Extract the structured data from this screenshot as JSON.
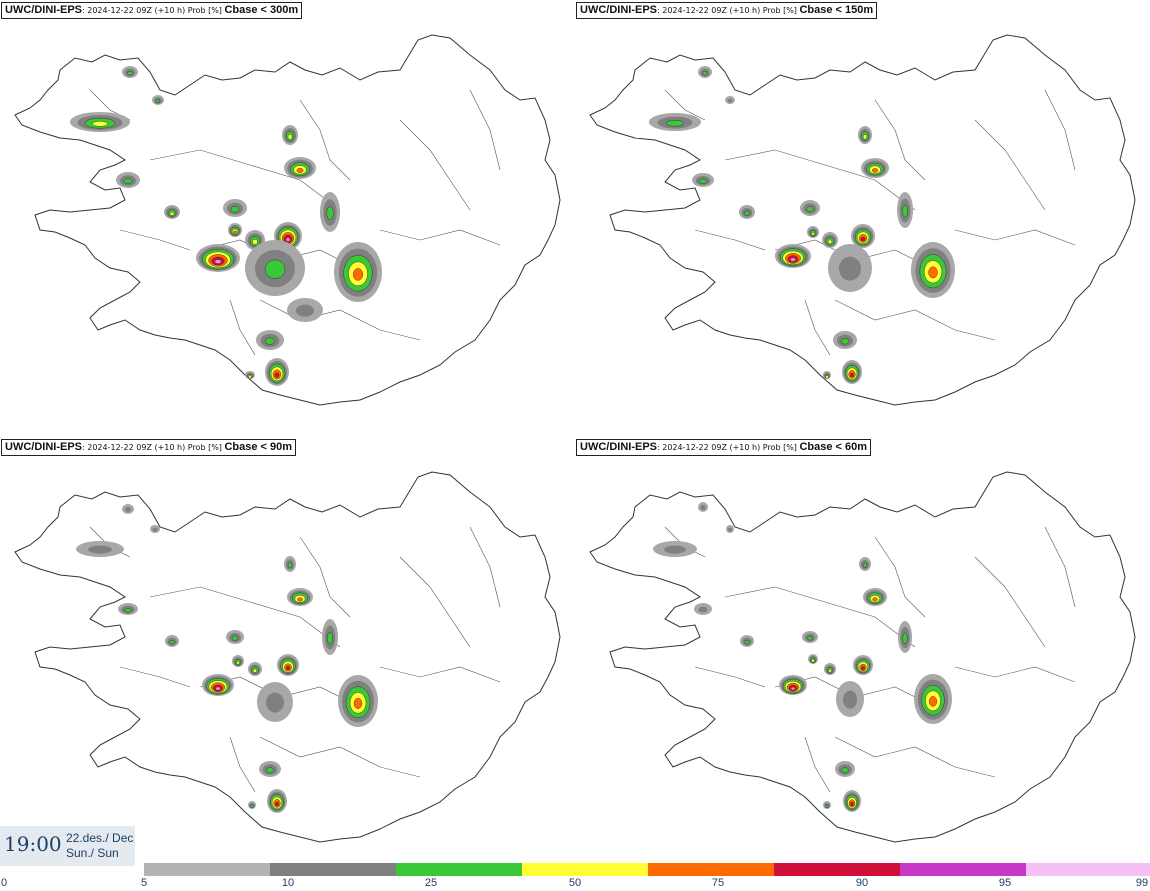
{
  "panels": [
    {
      "model": "UWC/DINI-EPS",
      "run": ": 2024-12-22 09Z (+10 h) Prob [%] ",
      "variable": "Cbase < 300m"
    },
    {
      "model": "UWC/DINI-EPS",
      "run": ": 2024-12-22 09Z (+10 h) Prob [%] ",
      "variable": "Cbase < 150m"
    },
    {
      "model": "UWC/DINI-EPS",
      "run": ": 2024-12-22 09Z (+10 h) Prob [%] ",
      "variable": "Cbase < 90m"
    },
    {
      "model": "UWC/DINI-EPS",
      "run": ": 2024-12-22 09Z (+10 h) Prob [%] ",
      "variable": "Cbase < 60m"
    }
  ],
  "valid": {
    "time": "19:00",
    "date": "22.des./ Dec",
    "day": "Sun./ Sun"
  },
  "colorbar": {
    "ticks": [
      "0",
      "5",
      "10",
      "25",
      "50",
      "75",
      "90",
      "95",
      "99"
    ],
    "colors": [
      "#b4b4b4",
      "#7f7f7f",
      "#3ac83a",
      "#ffff33",
      "#ff6a00",
      "#d0103a",
      "#c838c8",
      "#f5c0f5"
    ]
  },
  "map": {
    "land_color": "#ffffff",
    "outline_color": "#333333",
    "prob_colors": {
      "p10": "#a8a8a8",
      "p25": "#808080",
      "p50": "#3ac83a",
      "p75": "#ffff33",
      "p90": "#ff6a00",
      "p95": "#d0103a",
      "p99": "#e890e8"
    }
  }
}
